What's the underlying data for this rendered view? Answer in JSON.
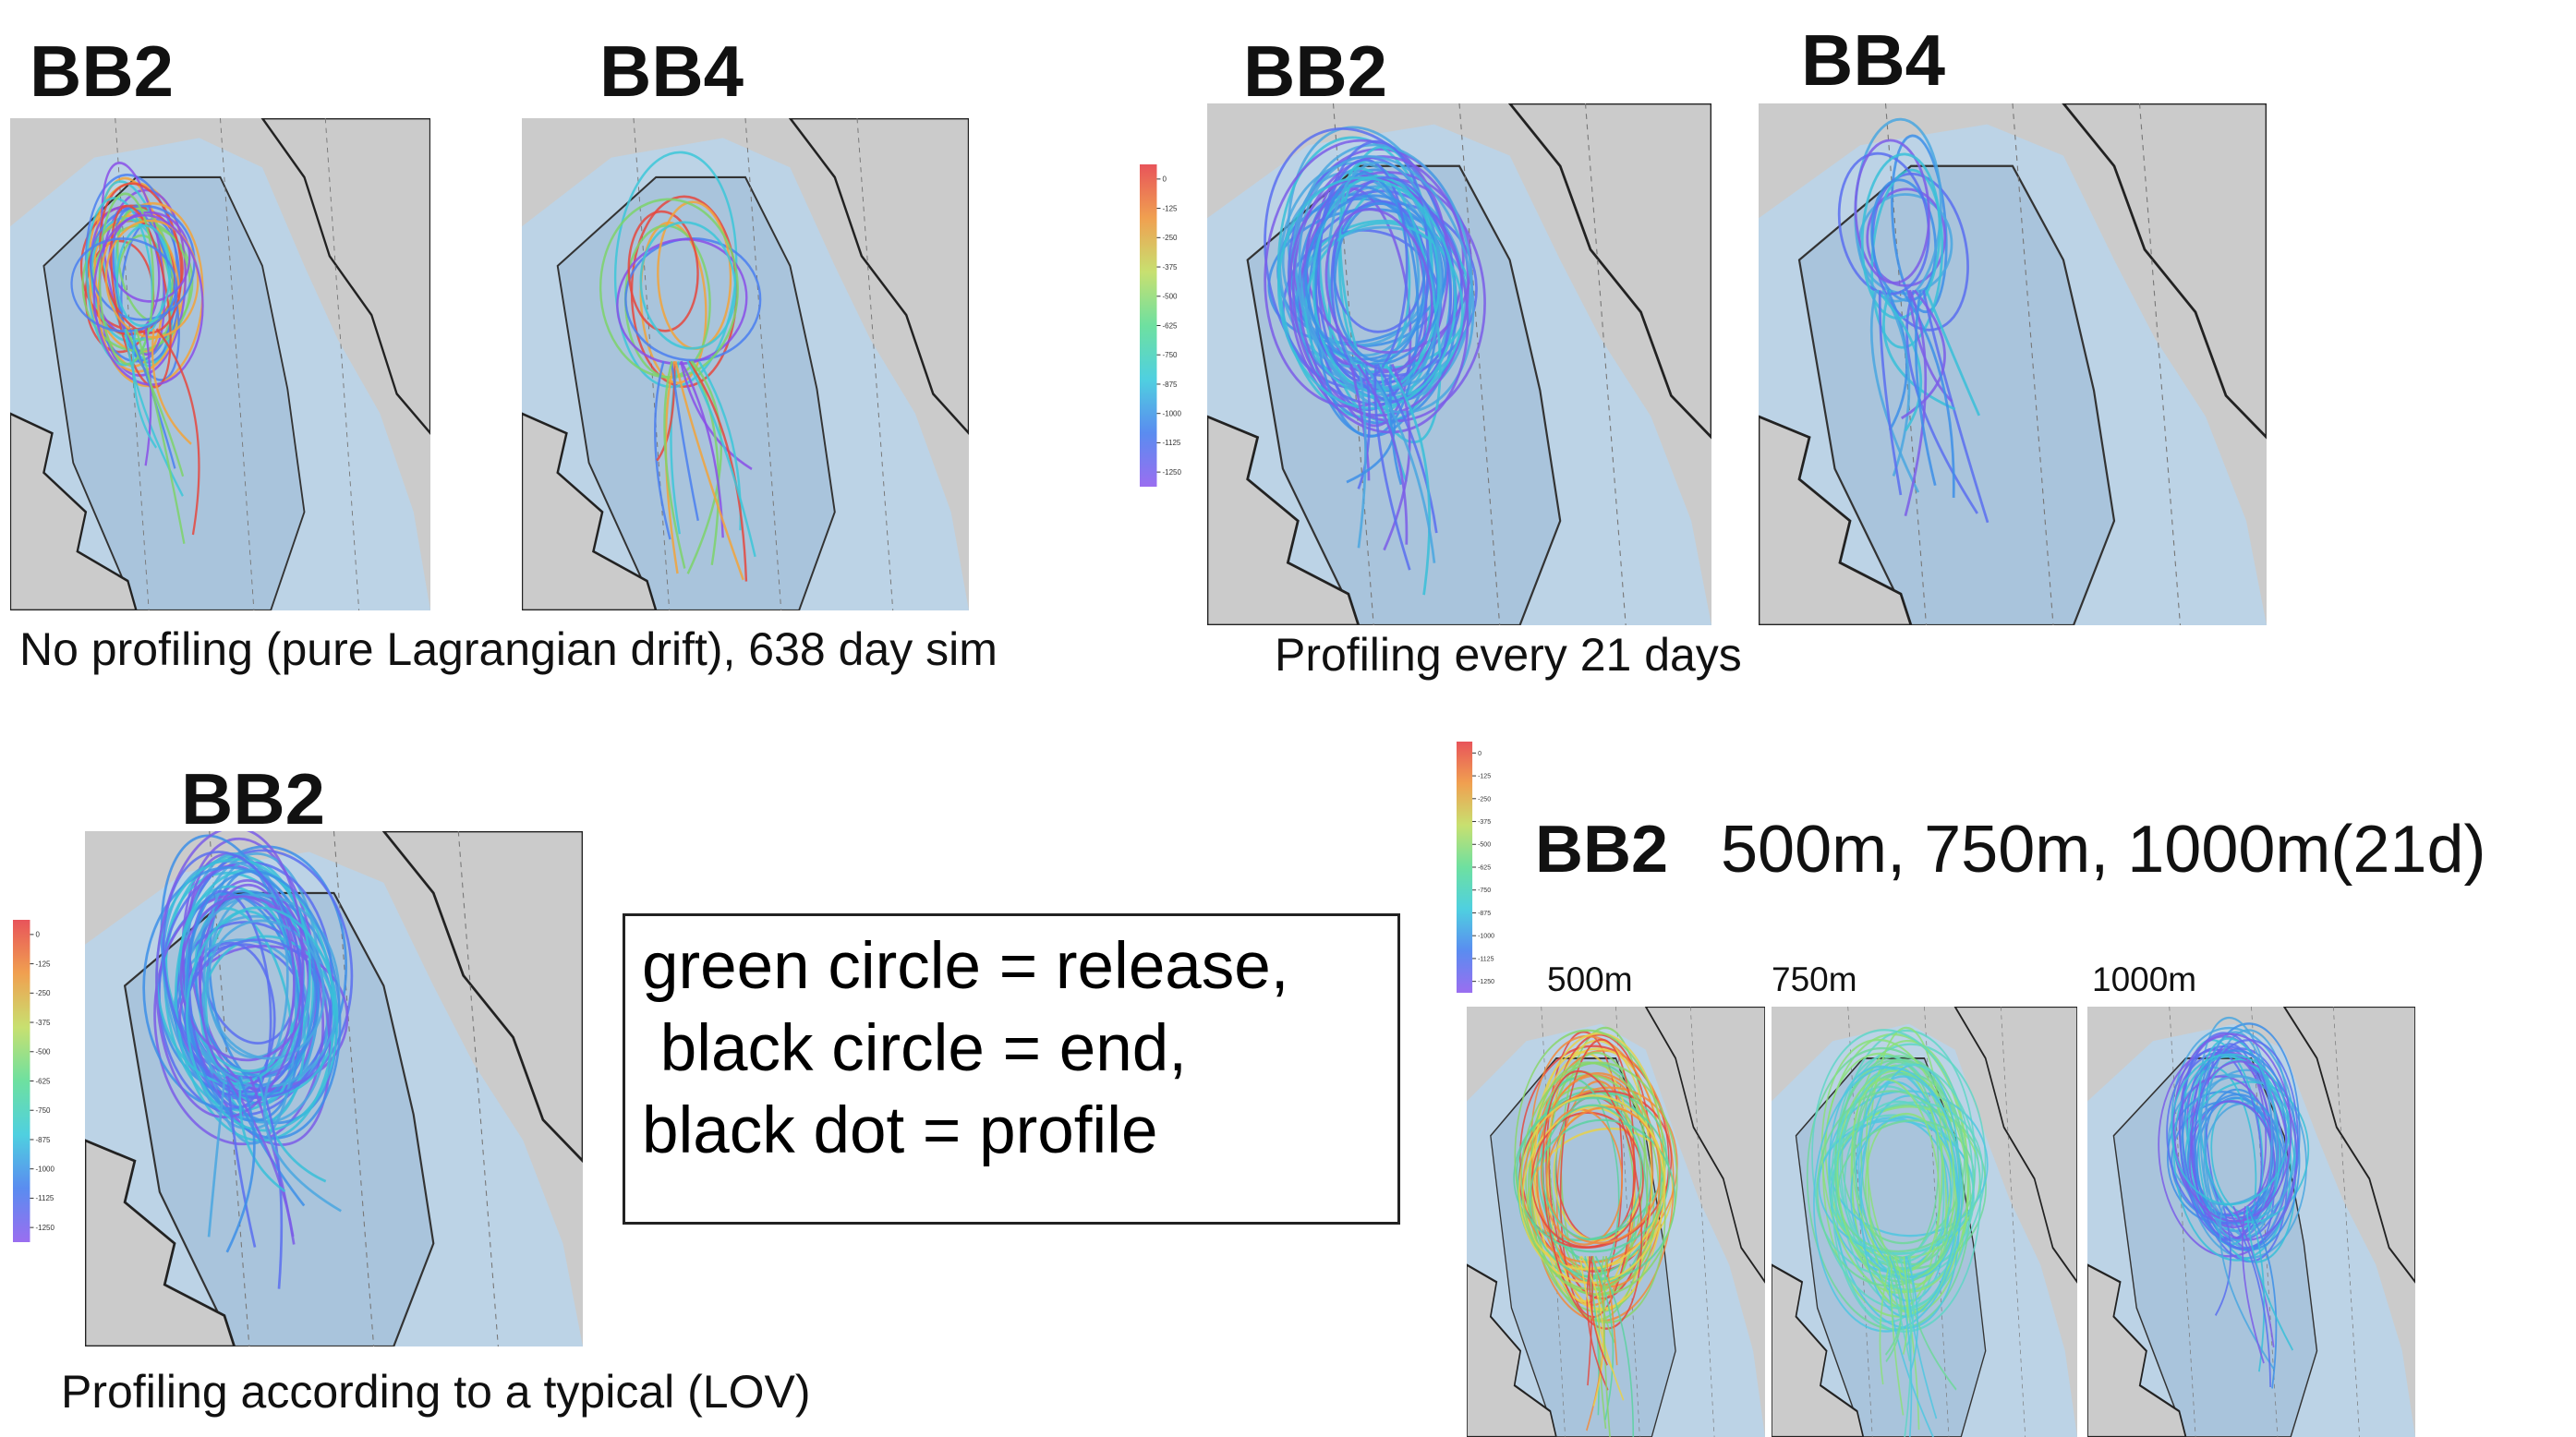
{
  "panels": [
    {
      "label": "BB2"
    },
    {
      "label": "BB4"
    },
    {
      "label": "BB2"
    },
    {
      "label": "BB4"
    },
    {
      "label": "BB2"
    }
  ],
  "captions": [
    "No profiling (pure Lagrangian drift), 638 day sim",
    "Profiling every 21 days",
    "Profiling according to a typical (LOV)"
  ],
  "colorbar_ticks": [
    "0",
    "-125",
    "-250",
    "-375",
    "-500",
    "-625",
    "-750",
    "-875",
    "-1000",
    "-1125",
    "-1250"
  ],
  "legend_box": {
    "lines": [
      "green circle = release,",
      " black circle = end,",
      "black dot = profile"
    ]
  },
  "depth_section": {
    "label": "BB2",
    "text": "500m, 750m, 1000m(21d)",
    "depths": [
      "500m",
      "750m",
      "1000m"
    ]
  }
}
